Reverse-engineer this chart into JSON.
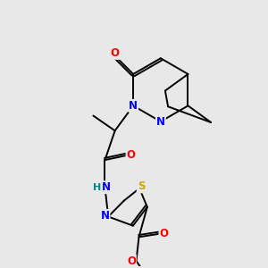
{
  "bg_color": "#e8e8e8",
  "atom_colors": {
    "N": "#0000ff",
    "O": "#ff0000",
    "S": "#ccaa00",
    "H": "#008888",
    "bond": "#000000"
  },
  "figsize": [
    3.0,
    3.0
  ],
  "dpi": 100,
  "lw": 1.4,
  "fs": 8.5
}
